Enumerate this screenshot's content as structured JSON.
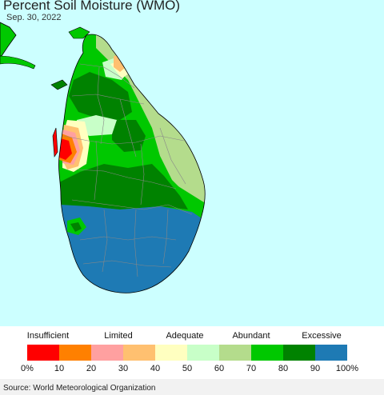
{
  "header": {
    "title": "Percent Soil Moisture (WMO)",
    "date": "Sep. 30, 2022"
  },
  "legend": {
    "categories": [
      {
        "label": "Insufficient"
      },
      {
        "label": "Limited"
      },
      {
        "label": "Adequate"
      },
      {
        "label": "Abundant"
      },
      {
        "label": "Excessive"
      }
    ],
    "bins": [
      {
        "from": 0,
        "to": 10,
        "color": "#ff0000"
      },
      {
        "from": 10,
        "to": 20,
        "color": "#ff8000"
      },
      {
        "from": 20,
        "to": 30,
        "color": "#ffa0a0"
      },
      {
        "from": 30,
        "to": 40,
        "color": "#ffc070"
      },
      {
        "from": 40,
        "to": 50,
        "color": "#ffffc0"
      },
      {
        "from": 50,
        "to": 60,
        "color": "#c8ffc8"
      },
      {
        "from": 60,
        "to": 70,
        "color": "#b4dc8c"
      },
      {
        "from": 70,
        "to": 80,
        "color": "#00c800"
      },
      {
        "from": 80,
        "to": 90,
        "color": "#008200"
      },
      {
        "from": 90,
        "to": 100,
        "color": "#1e7ab4"
      }
    ],
    "ticks": [
      "0%",
      "10",
      "20",
      "30",
      "40",
      "50",
      "60",
      "70",
      "80",
      "90",
      "100%"
    ]
  },
  "map": {
    "ocean_color": "#ccffff",
    "land_outline_color": "#000000",
    "district_line_color": "#888888"
  },
  "footer": {
    "source": "Source: World Meteorological Organization"
  }
}
